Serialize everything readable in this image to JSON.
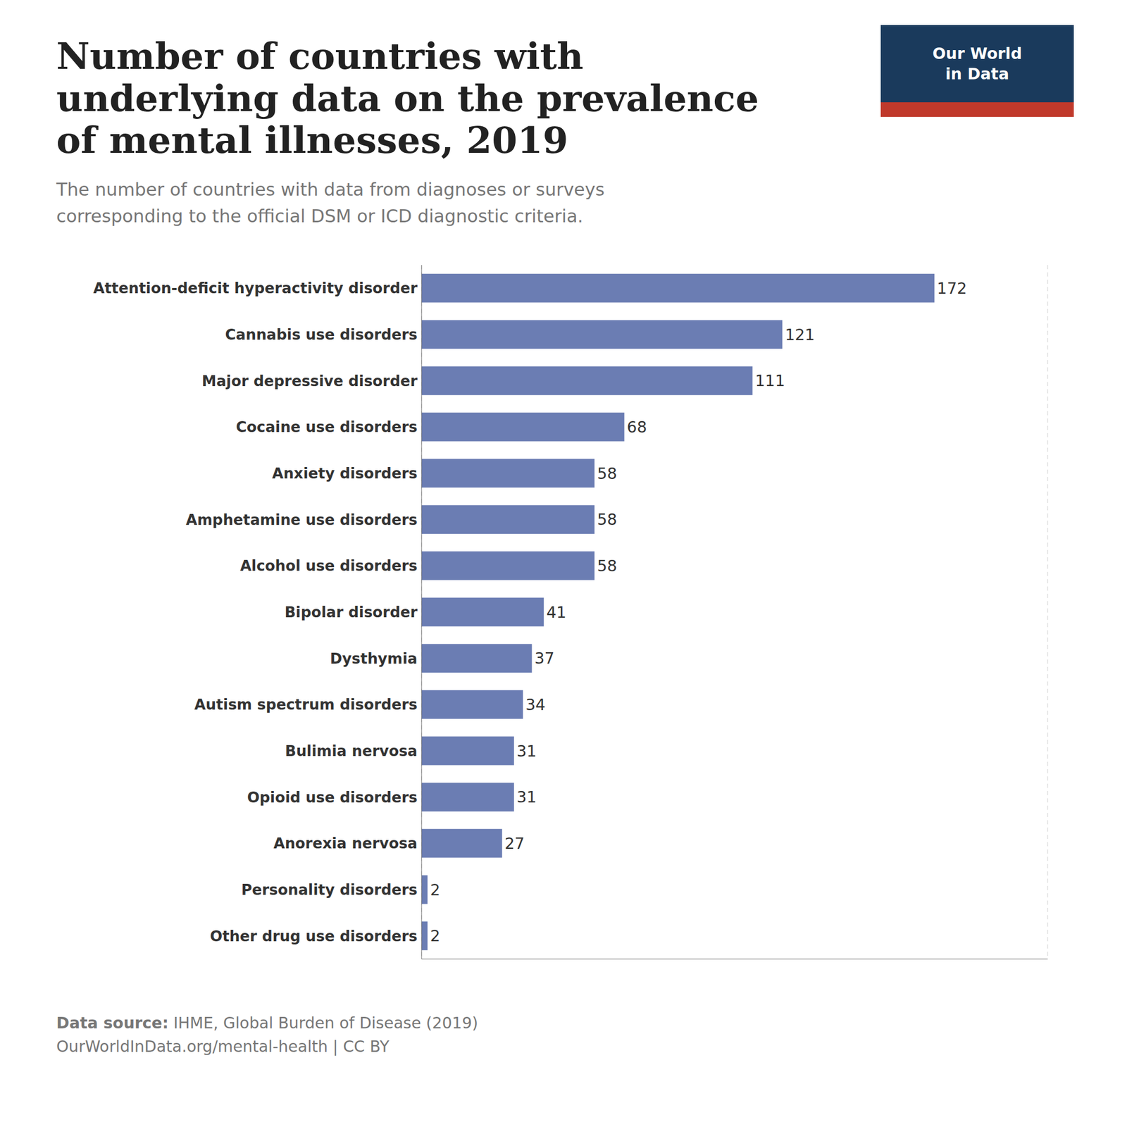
{
  "chart_data": {
    "type": "bar",
    "orientation": "horizontal",
    "title": "Number of countries with\nunderlying data on the prevalence\nof mental illnesses, 2019",
    "subtitle": "The number of countries with data from diagnoses or surveys\ncorresponding to the official DSM or ICD diagnostic criteria.",
    "annotations": [
      "Our World\nin Data",
      "Data source: IHME, Global Burden of Disease (2019)",
      "OurWorldInData.org/mental-health | CC BY"
    ],
    "categories": [
      "Attention-deficit hyperactivity disorder",
      "Cannabis use disorders",
      "Major depressive disorder",
      "Cocaine use disorders",
      "Anxiety disorders",
      "Amphetamine use disorders",
      "Alcohol use disorders",
      "Bipolar disorder",
      "Dysthymia",
      "Autism spectrum disorders",
      "Bulimia nervosa",
      "Opioid use disorders",
      "Anorexia nervosa",
      "Personality disorders",
      "Other drug use disorders"
    ],
    "values": [
      172,
      121,
      111,
      68,
      58,
      58,
      58,
      41,
      37,
      34,
      31,
      31,
      27,
      2,
      2
    ],
    "color": "#6b7db3",
    "xlim": [
      0,
      210
    ],
    "xticks": [
      50,
      100,
      150
    ],
    "grid": true,
    "data_labels": true,
    "tick_labels": "y"
  }
}
